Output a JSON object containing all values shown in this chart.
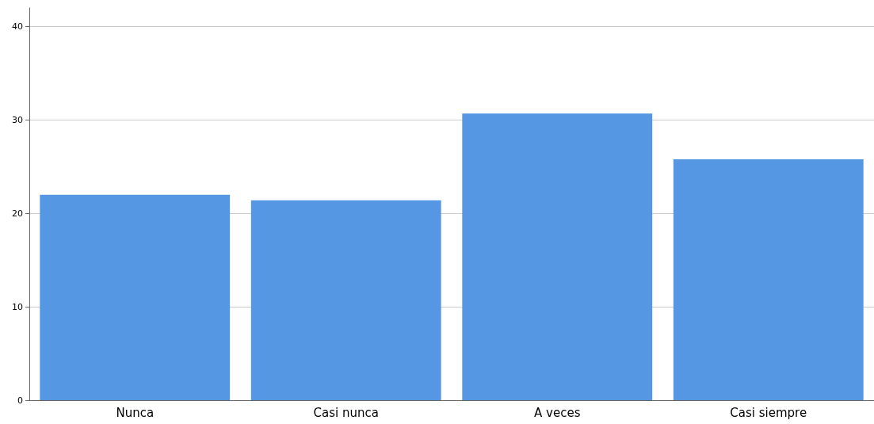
{
  "chart_data": {
    "type": "bar",
    "categories": [
      "Nunca",
      "Casi nunca",
      "A veces",
      "Casi siempre"
    ],
    "values": [
      22.0,
      21.4,
      30.7,
      25.8
    ],
    "color": "#5597e3",
    "ylim": [
      0,
      42
    ],
    "yticks": [
      0,
      10,
      20,
      30,
      40
    ],
    "grid": "y"
  }
}
